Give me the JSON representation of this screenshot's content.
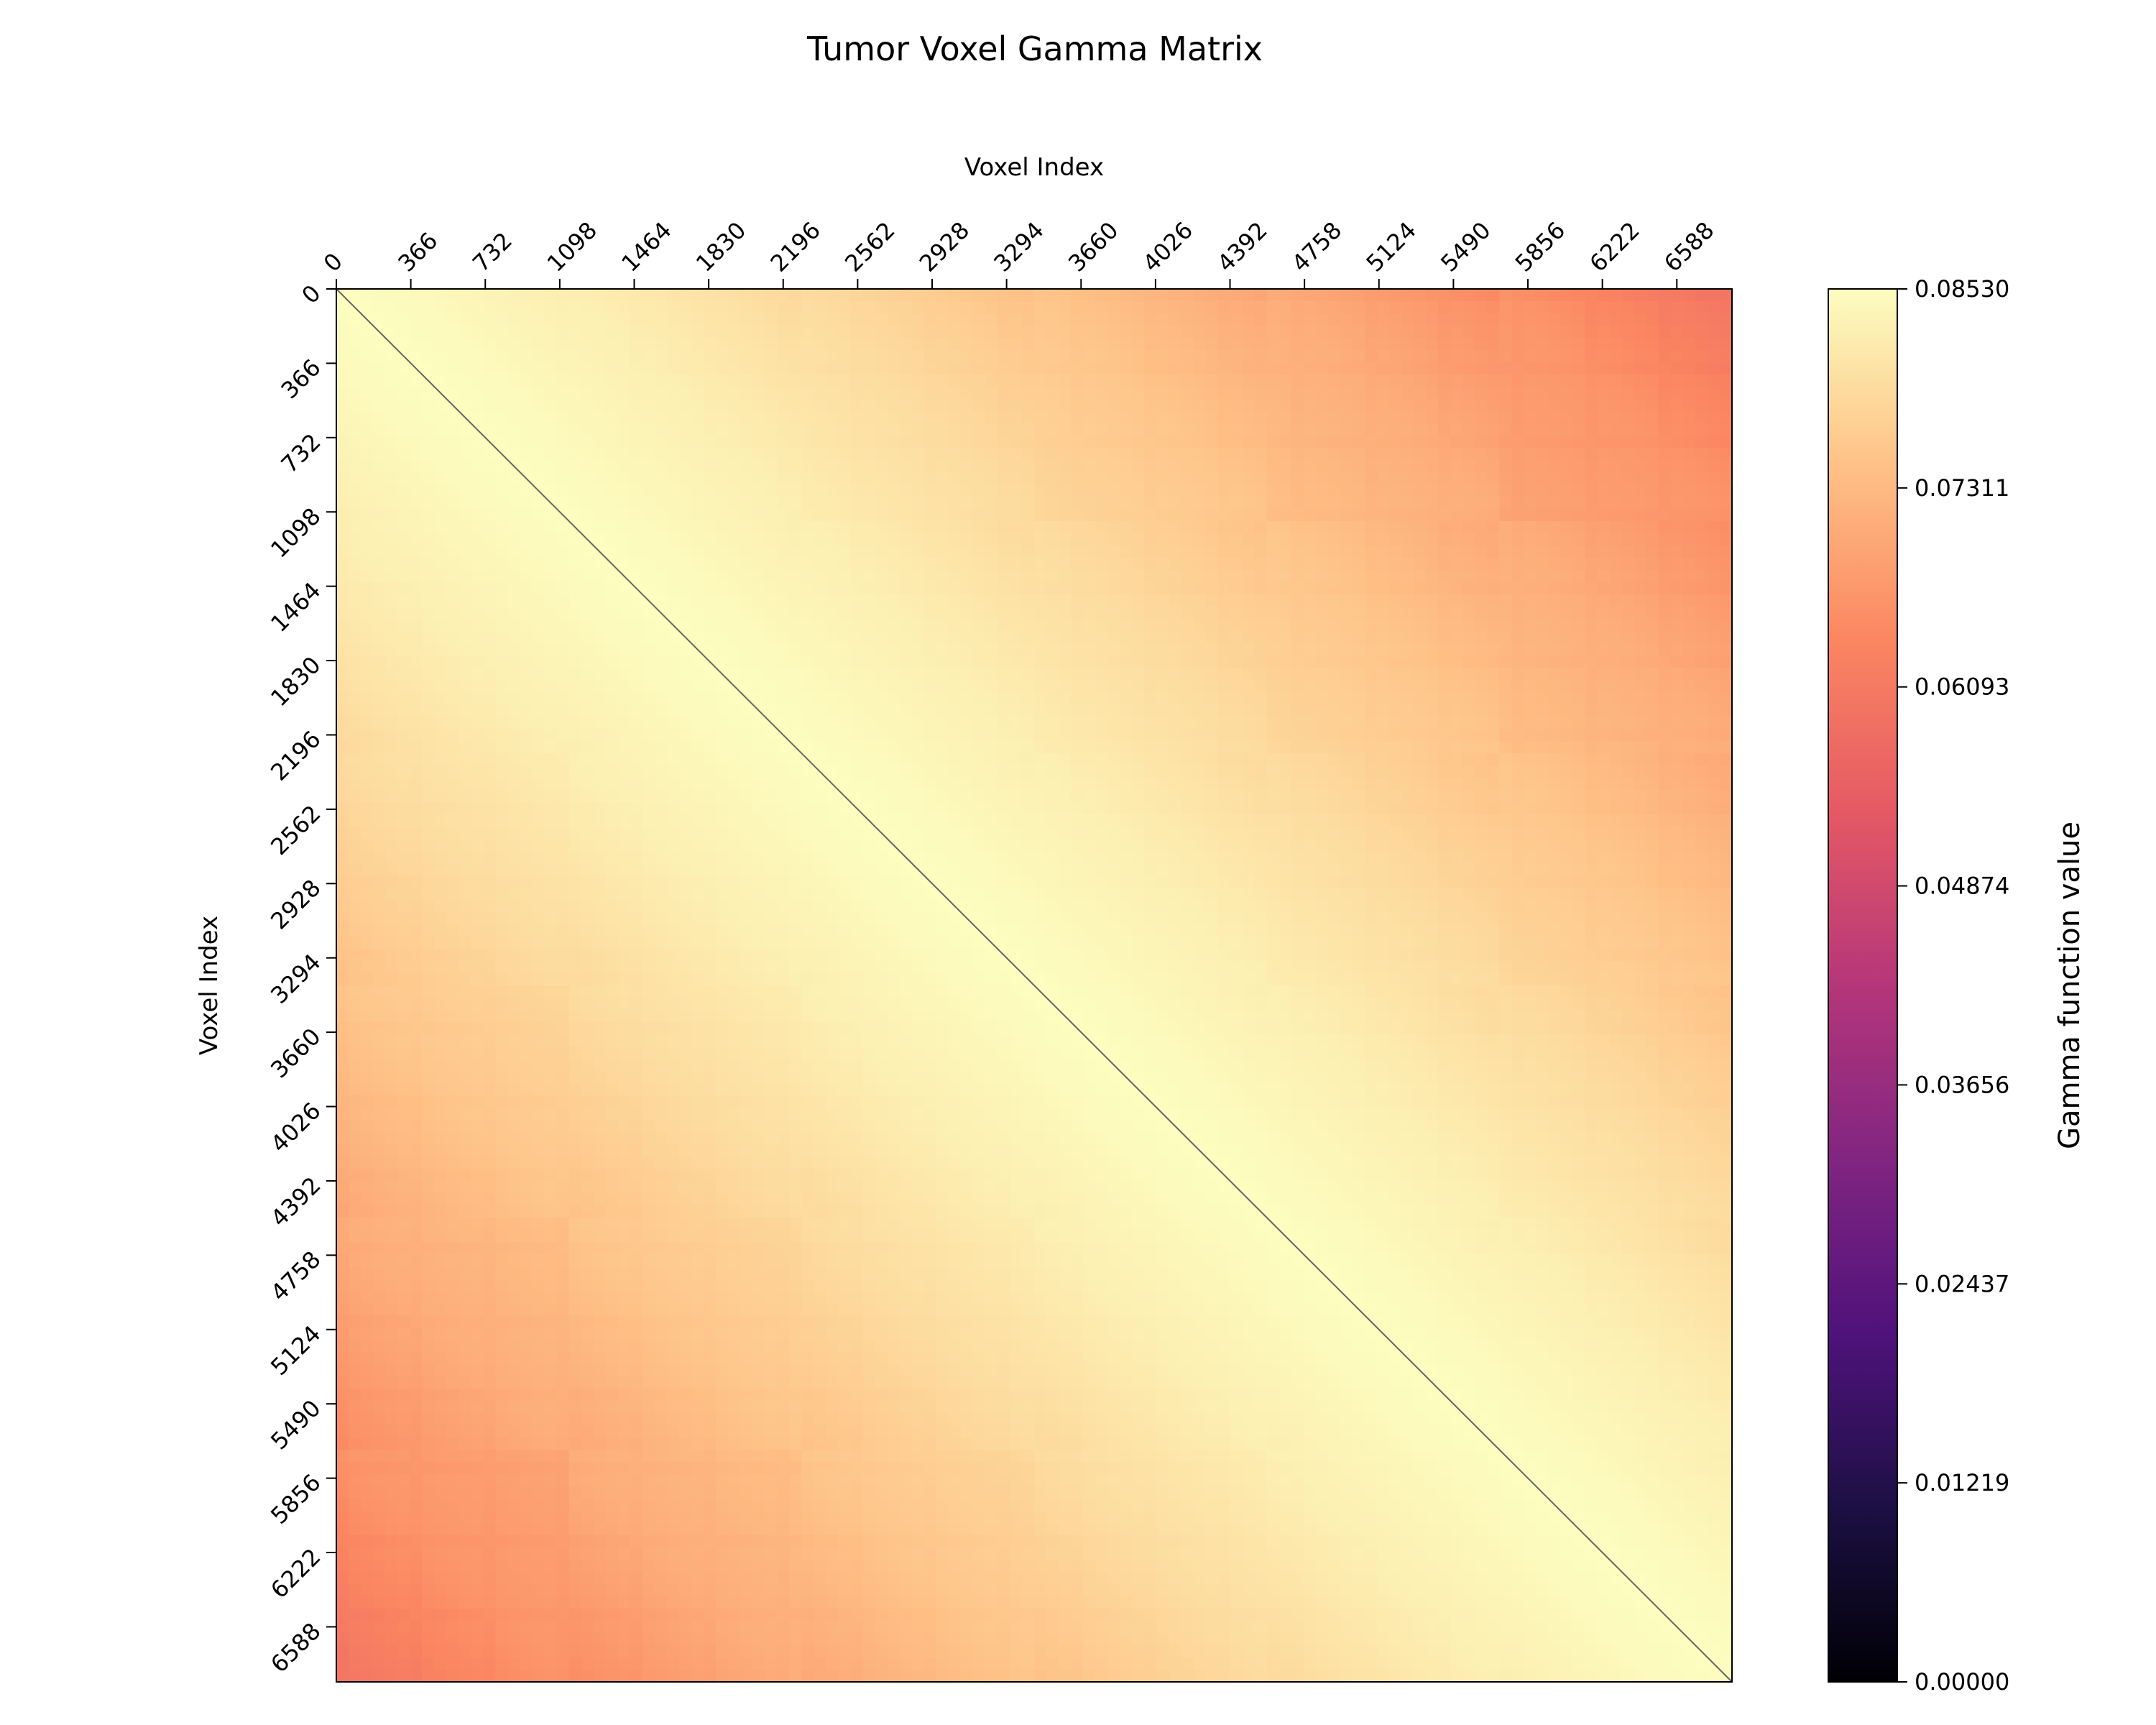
{
  "chart_data": {
    "type": "heatmap",
    "title": "Tumor Voxel Gamma Matrix",
    "xlabel": "Voxel Index",
    "ylabel": "Voxel Index",
    "x_axis_position": "top",
    "x_ticks": [
      "0",
      "366",
      "732",
      "1098",
      "1464",
      "1830",
      "2196",
      "2562",
      "2928",
      "3294",
      "3660",
      "4026",
      "4392",
      "4758",
      "5124",
      "5490",
      "5856",
      "6222",
      "6588"
    ],
    "y_ticks": [
      "0",
      "366",
      "732",
      "1098",
      "1464",
      "1830",
      "2196",
      "2562",
      "2928",
      "3294",
      "3660",
      "4026",
      "4392",
      "4758",
      "5124",
      "5490",
      "5856",
      "6222",
      "6588"
    ],
    "tick_step": 366,
    "matrix_size": 6859,
    "colormap": "magma",
    "colorbar": {
      "label": "Gamma function value",
      "min": 0.0,
      "max": 0.0853,
      "ticks": [
        "0.00000",
        "0.01219",
        "0.02437",
        "0.03656",
        "0.04874",
        "0.06093",
        "0.07311",
        "0.08530"
      ]
    },
    "diagonal_value": 0.0,
    "value_range_offdiagonal": [
      0.06,
      0.0853
    ],
    "pattern": "symmetric block-tiled gamma matrix; values near 0.085 close to the diagonal, decreasing toward ~0.06 at far off-diagonal corners (top-right and bottom-left)",
    "grid": false
  },
  "colors": {
    "high": "#fcfdbf",
    "mid": "#fb8761",
    "low": "#000004",
    "diagonal_line": "#666666"
  }
}
